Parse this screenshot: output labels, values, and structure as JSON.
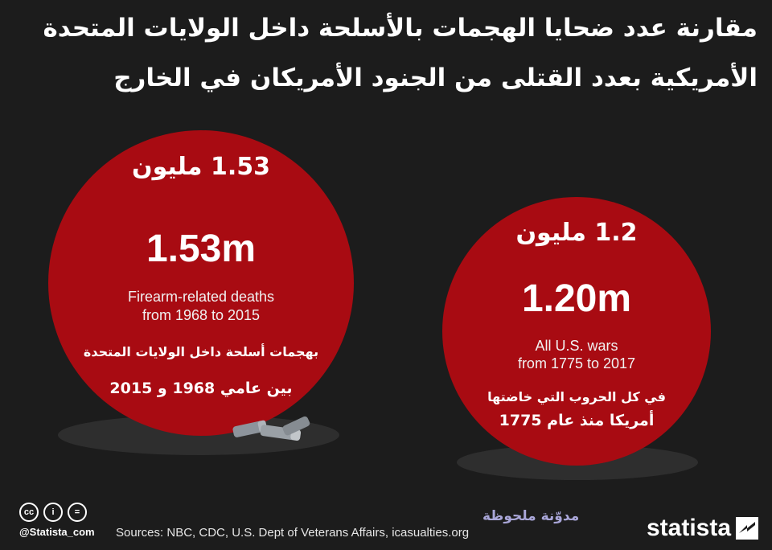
{
  "title": {
    "line1": "مقارنة عدد ضحايا الهجمات بالأسلحة داخل الولايات المتحدة",
    "line2": "الأمريكية بعدد القتلى من الجنود الأمريكان في الخارج"
  },
  "left": {
    "ar_value": "1.53 مليون",
    "value": "1.53m",
    "en_line1": "Firearm-related deaths",
    "en_line2": "from 1968 to 2015",
    "ar_line1": "بهجمات أسلحة داخل الولايات المتحدة",
    "ar_line2": "بين عامي 1968 و 2015"
  },
  "right": {
    "ar_value": "1.2 مليون",
    "value": "1.20m",
    "en_line1": "All U.S. wars",
    "en_line2": "from 1775 to 2017",
    "ar_line1": "في كل الحروب التي خاضتها",
    "ar_line2": "أمريكا منذ عام 1775"
  },
  "footer": {
    "cc_labels": [
      "cc",
      "i",
      "="
    ],
    "handle": "@Statista_com",
    "sources": "Sources: NBC, CDC, U.S. Dept of Veterans Affairs, icasualties.org",
    "watermark": "مدوّنة ملحوظة",
    "logo": "statista"
  },
  "colors": {
    "background": "#1c1c1c",
    "circle": "#a80b12",
    "shadow": "#2e2e2e"
  },
  "chart_data": {
    "type": "bubble",
    "unit": "million",
    "categories": [
      "Firearm-related deaths from 1968 to 2015",
      "All U.S. wars from 1775 to 2017"
    ],
    "values": [
      1.53,
      1.2
    ]
  }
}
